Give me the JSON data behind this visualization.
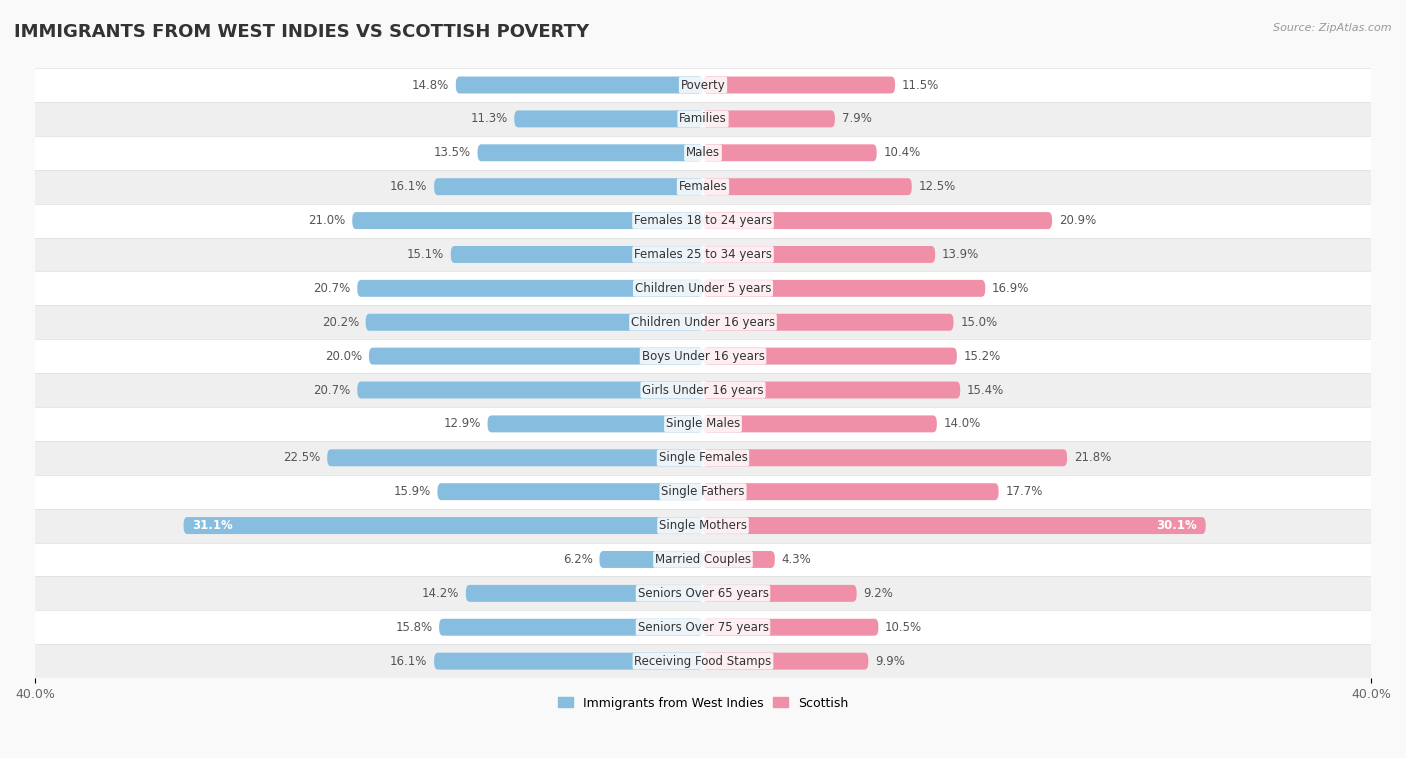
{
  "title": "IMMIGRANTS FROM WEST INDIES VS SCOTTISH POVERTY",
  "source": "Source: ZipAtlas.com",
  "categories": [
    "Poverty",
    "Families",
    "Males",
    "Females",
    "Females 18 to 24 years",
    "Females 25 to 34 years",
    "Children Under 5 years",
    "Children Under 16 years",
    "Boys Under 16 years",
    "Girls Under 16 years",
    "Single Males",
    "Single Females",
    "Single Fathers",
    "Single Mothers",
    "Married Couples",
    "Seniors Over 65 years",
    "Seniors Over 75 years",
    "Receiving Food Stamps"
  ],
  "west_indies": [
    14.8,
    11.3,
    13.5,
    16.1,
    21.0,
    15.1,
    20.7,
    20.2,
    20.0,
    20.7,
    12.9,
    22.5,
    15.9,
    31.1,
    6.2,
    14.2,
    15.8,
    16.1
  ],
  "scottish": [
    11.5,
    7.9,
    10.4,
    12.5,
    20.9,
    13.9,
    16.9,
    15.0,
    15.2,
    15.4,
    14.0,
    21.8,
    17.7,
    30.1,
    4.3,
    9.2,
    10.5,
    9.9
  ],
  "west_indies_color": "#87BDDE",
  "scottish_color": "#F090A8",
  "west_indies_label": "Immigrants from West Indies",
  "scottish_label": "Scottish",
  "xlim": 40.0,
  "background_color": "#f9f9f9",
  "row_colors": [
    "#ffffff",
    "#efefef"
  ],
  "bar_height": 0.5,
  "title_fontsize": 13,
  "label_fontsize": 8.5,
  "value_fontsize": 8.5,
  "value_inside_threshold": 25.0
}
